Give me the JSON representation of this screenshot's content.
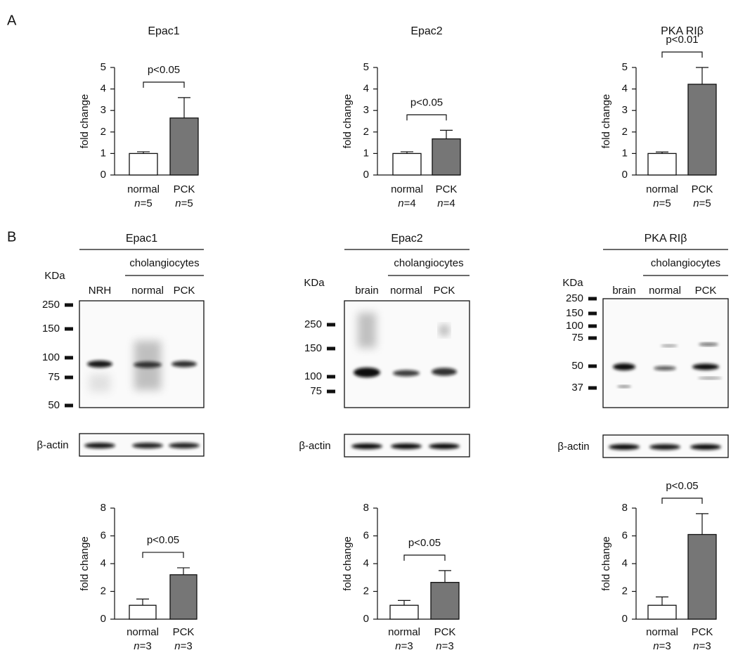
{
  "panel_labels": [
    "A",
    "B"
  ],
  "chart_data": [
    {
      "type": "bar",
      "title": "Epac1",
      "ylabel": "fold change",
      "categories": [
        "normal",
        "PCK"
      ],
      "n_labels": [
        "n=5",
        "n=5"
      ],
      "values": [
        1.0,
        2.65
      ],
      "errors": [
        0.08,
        0.95
      ],
      "colors": [
        "#ffffff",
        "#767676"
      ],
      "ylim": [
        0,
        5
      ],
      "yticks": [
        0,
        1,
        2,
        3,
        4,
        5
      ],
      "annotation": "p<0.05"
    },
    {
      "type": "bar",
      "title": "Epac2",
      "ylabel": "fold change",
      "categories": [
        "normal",
        "PCK"
      ],
      "n_labels": [
        "n=4",
        "n=4"
      ],
      "values": [
        1.0,
        1.68
      ],
      "errors": [
        0.08,
        0.4
      ],
      "colors": [
        "#ffffff",
        "#767676"
      ],
      "ylim": [
        0,
        5
      ],
      "yticks": [
        0,
        1,
        2,
        3,
        4,
        5
      ],
      "annotation": "p<0.05"
    },
    {
      "type": "bar",
      "title": "PKA RIβ",
      "ylabel": "fold change",
      "categories": [
        "normal",
        "PCK"
      ],
      "n_labels": [
        "n=5",
        "n=5"
      ],
      "values": [
        1.0,
        4.22
      ],
      "errors": [
        0.07,
        0.78
      ],
      "colors": [
        "#ffffff",
        "#767676"
      ],
      "ylim": [
        0,
        5
      ],
      "yticks": [
        0,
        1,
        2,
        3,
        4,
        5
      ],
      "annotation": "p<0.01"
    },
    {
      "type": "bar",
      "ylabel": "fold change",
      "categories": [
        "normal",
        "PCK"
      ],
      "n_labels": [
        "n=3",
        "n=3"
      ],
      "values": [
        1.0,
        3.2
      ],
      "errors": [
        0.45,
        0.5
      ],
      "colors": [
        "#ffffff",
        "#767676"
      ],
      "ylim": [
        0,
        8
      ],
      "yticks": [
        0,
        2,
        4,
        6,
        8
      ],
      "annotation": "p<0.05"
    },
    {
      "type": "bar",
      "ylabel": "fold change",
      "categories": [
        "normal",
        "PCK"
      ],
      "n_labels": [
        "n=3",
        "n=3"
      ],
      "values": [
        1.0,
        2.65
      ],
      "errors": [
        0.35,
        0.85
      ],
      "colors": [
        "#ffffff",
        "#767676"
      ],
      "ylim": [
        0,
        8
      ],
      "yticks": [
        0,
        2,
        4,
        6,
        8
      ],
      "annotation": "p<0.05"
    },
    {
      "type": "bar",
      "ylabel": "fold change",
      "categories": [
        "normal",
        "PCK"
      ],
      "n_labels": [
        "n=3",
        "n=3"
      ],
      "values": [
        1.0,
        6.1
      ],
      "errors": [
        0.6,
        1.5
      ],
      "colors": [
        "#ffffff",
        "#767676"
      ],
      "ylim": [
        0,
        8
      ],
      "yticks": [
        0,
        2,
        4,
        6,
        8
      ],
      "annotation": "p<0.05"
    }
  ],
  "blots": [
    {
      "title": "Epac1",
      "group": "cholangiocytes",
      "unit": "KDa",
      "lanes": [
        "NRH",
        "normal",
        "PCK"
      ],
      "markers": [
        250,
        150,
        100,
        75,
        50
      ],
      "loading": "β-actin"
    },
    {
      "title": "Epac2",
      "group": "cholangiocytes",
      "unit": "KDa",
      "lanes": [
        "brain",
        "normal",
        "PCK"
      ],
      "markers": [
        250,
        150,
        100,
        75
      ],
      "loading": "β-actin"
    },
    {
      "title": "PKA RIβ",
      "group": "cholangiocytes",
      "unit": "KDa",
      "lanes": [
        "brain",
        "normal",
        "PCK"
      ],
      "markers": [
        250,
        150,
        100,
        75,
        50,
        37
      ],
      "loading": "β-actin"
    }
  ]
}
